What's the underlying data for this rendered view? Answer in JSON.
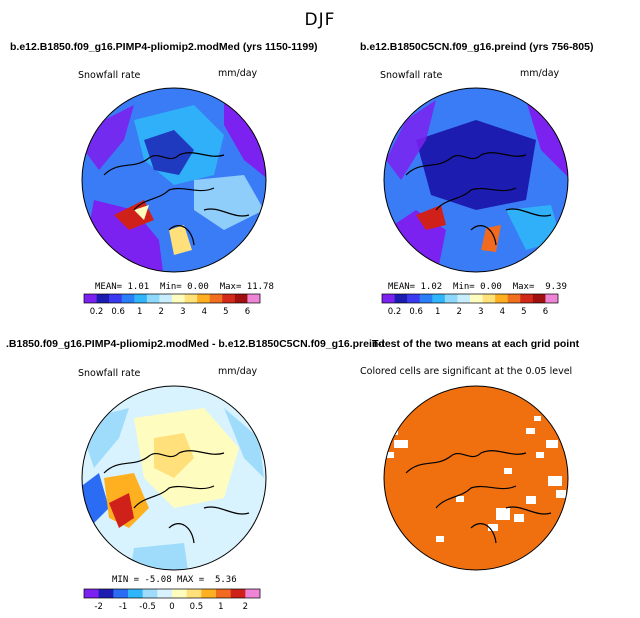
{
  "figure": {
    "title": "DJF"
  },
  "panels": [
    {
      "title": "b.e12.B1850.f09_g16.PIMP4-pliomip2.modMed (yrs 1150-1199)",
      "variable": "Snowfall rate",
      "units": "mm/day",
      "stats": {
        "mean_label": "MEAN=",
        "mean": "1.01",
        "min_label": "Min=",
        "min": "0.00",
        "max_label": "Max=",
        "max": "11.78"
      }
    },
    {
      "title": "b.e12.B1850C5CN.f09_g16.preind (yrs 756-805)",
      "variable": "Snowfall rate",
      "units": "mm/day",
      "stats": {
        "mean_label": "MEAN=",
        "mean": "1.02",
        "min_label": "Min=",
        "min": "0.00",
        "max_label": "Max=",
        "max": "9.39"
      }
    },
    {
      "title": ".B1850.f09_g16.PIMP4-pliomip2.modMed - b.e12.B1850C5CN.f09_g16.preind",
      "variable": "Snowfall rate",
      "units": "mm/day",
      "stats": {
        "min_label": "MIN =",
        "min": "-5.08",
        "max_label": "MAX =",
        "max": "5.36"
      }
    },
    {
      "title": "T-test of the two means at each grid point",
      "note": "Colored cells are significant at the 0.05 level"
    }
  ],
  "colorbars": {
    "snowfall": {
      "labels": [
        "0.2",
        "0.6",
        "1",
        "2",
        "3",
        "4",
        "5",
        "6"
      ],
      "colors": [
        "#7b22f0",
        "#1c1cb0",
        "#3a3af0",
        "#2a7ef8",
        "#30b4fa",
        "#8ed8fc",
        "#c8eefd",
        "#fffcc0",
        "#ffe27a",
        "#ffb020",
        "#f07020",
        "#d22a1a",
        "#a01010",
        "#ee84d6"
      ]
    },
    "difference": {
      "labels": [
        "-2",
        "-1",
        "-0.5",
        "0",
        "0.5",
        "1",
        "2"
      ],
      "colors": [
        "#7b22f0",
        "#1c1cb0",
        "#2a6cf4",
        "#30b4fa",
        "#9fdcfc",
        "#d8f2fe",
        "#fffcc0",
        "#ffe07a",
        "#ffb020",
        "#f06a20",
        "#d0201a",
        "#ee84d6"
      ]
    }
  },
  "colors": {
    "significant": "#f07010",
    "ocean_low": "#2a6cf4",
    "land_low": "#1c1cb0"
  }
}
